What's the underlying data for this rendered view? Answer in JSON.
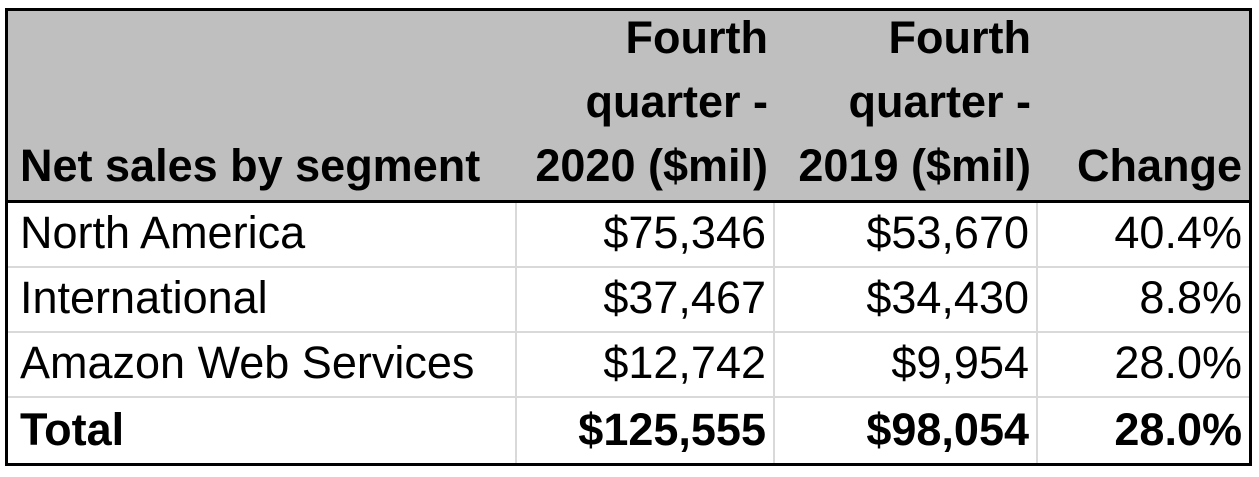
{
  "table": {
    "header": {
      "col1": "Net sales by segment",
      "col2_lines": [
        "Fourth",
        "quarter -",
        "2020 ($mil)"
      ],
      "col3_lines": [
        "Fourth",
        "quarter -",
        "2019 ($mil)"
      ],
      "col4": "Change"
    },
    "rows": [
      {
        "name": "North America",
        "v2020": "$75,346",
        "v2019": "$53,670",
        "change": "40.4%"
      },
      {
        "name": "International",
        "v2020": "$37,467",
        "v2019": "$34,430",
        "change": "8.8%"
      },
      {
        "name": "Amazon Web Services",
        "v2020": "$12,742",
        "v2019": "$9,954",
        "change": "28.0%"
      }
    ],
    "total_row": {
      "name": "Total",
      "v2020": "$125,555",
      "v2019": "$98,054",
      "change": "28.0%"
    }
  },
  "chart_data": {
    "type": "table",
    "title": "",
    "columns": [
      "Net sales by segment",
      "Fourth quarter - 2020 ($mil)",
      "Fourth quarter - 2019 ($mil)",
      "Change"
    ],
    "rows": [
      [
        "North America",
        75346,
        53670,
        "40.4%"
      ],
      [
        "International",
        37467,
        34430,
        "8.8%"
      ],
      [
        "Amazon Web Services",
        12742,
        9954,
        "28.0%"
      ],
      [
        "Total",
        125555,
        98054,
        "28.0%"
      ]
    ]
  },
  "colors": {
    "header_bg": "#bfbfbf",
    "grid_line": "#d9d9d9",
    "outer_border": "#000000",
    "text": "#000000",
    "background": "#ffffff"
  }
}
